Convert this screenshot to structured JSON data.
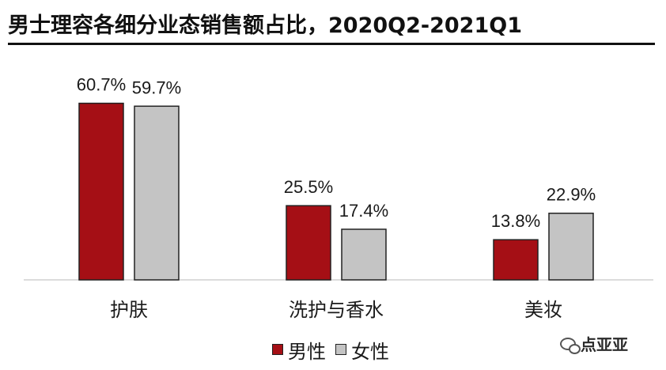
{
  "chart_data": {
    "type": "bar",
    "title": "男士理容各细分业态销售额占比，2020Q2-2021Q1",
    "categories": [
      "护肤",
      "洗护与香水",
      "美妆"
    ],
    "series": [
      {
        "name": "男性",
        "values": [
          60.7,
          25.5,
          13.8
        ],
        "labels": [
          "60.7%",
          "25.5%",
          "13.8%"
        ],
        "color": "#a50f15"
      },
      {
        "name": "女性",
        "values": [
          59.7,
          17.4,
          22.9
        ],
        "labels": [
          "59.7%",
          "17.4%",
          "22.9%"
        ],
        "color": "#c4c4c4"
      }
    ],
    "xlabel": "",
    "ylabel": "",
    "ylim": [
      0,
      70
    ],
    "grid": false,
    "legend": "bottom-center",
    "bar_outline_color": "#222222"
  },
  "watermark": {
    "text": "点亚亚",
    "icon": "wechat-icon"
  }
}
